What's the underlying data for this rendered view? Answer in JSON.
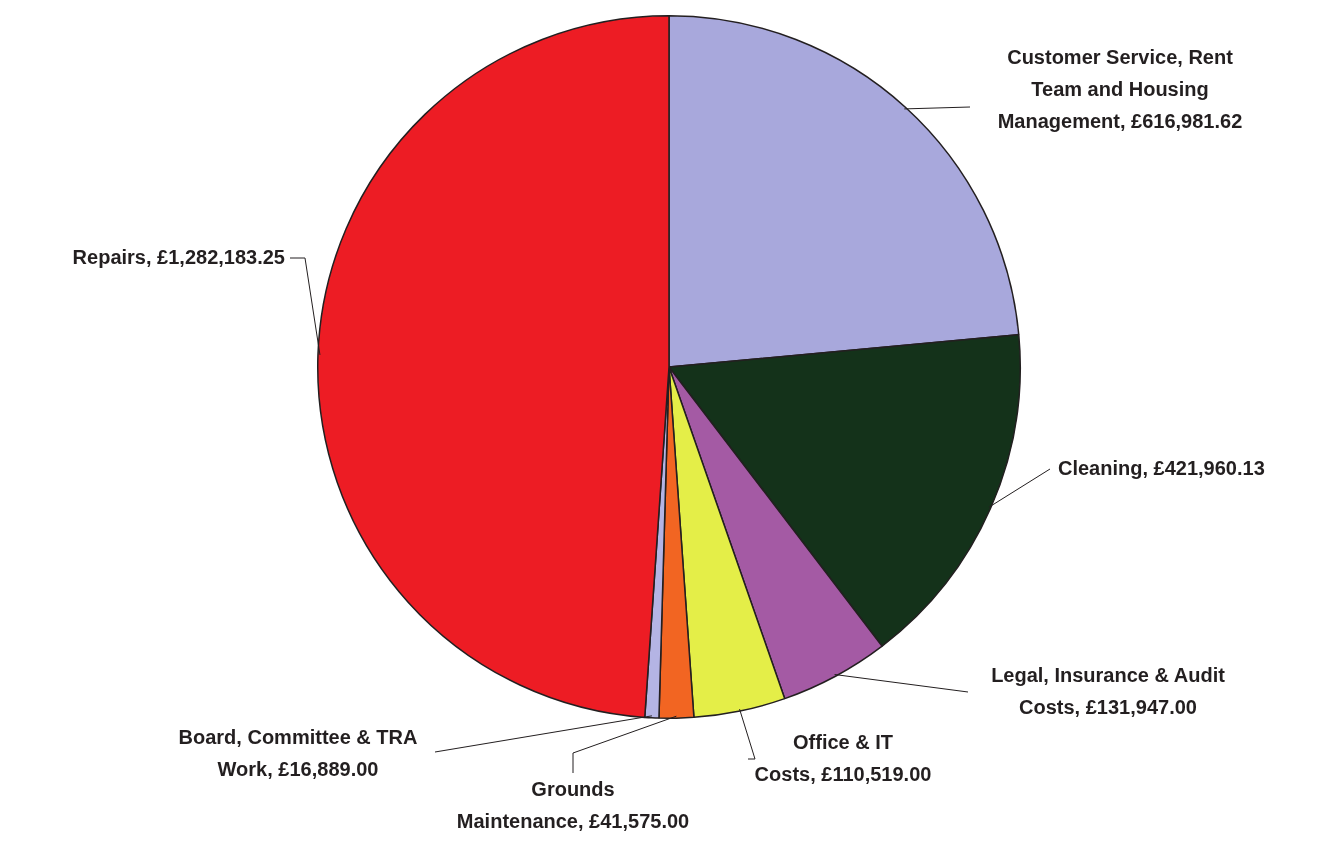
{
  "chart_data": {
    "type": "pie",
    "categories": [
      "Customer Service, Rent Team and Housing Management",
      "Cleaning",
      "Legal, Insurance & Audit Costs",
      "Office & IT Costs",
      "Grounds Maintenance",
      "Board, Committee & TRA Work",
      "Repairs"
    ],
    "values": [
      616981.62,
      421960.13,
      131947,
      110519,
      41575,
      16889,
      1282183.25
    ],
    "value_labels": [
      "£616,981.62",
      "£421,960.13",
      "£131,947.00",
      "£110,519.00",
      "£41,575.00",
      "£16,889.00",
      "£1,282,183.25"
    ],
    "colors": [
      "#a8a8dc",
      "#14321a",
      "#a45aa4",
      "#e4ee48",
      "#f26522",
      "#b4b4e4",
      "#ed1c24"
    ],
    "legend": false
  }
}
